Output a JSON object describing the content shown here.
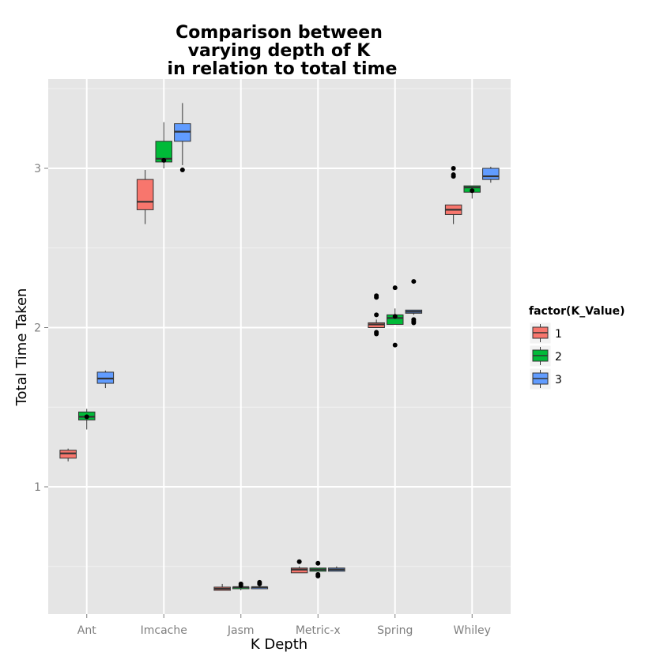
{
  "chart_data": {
    "type": "boxplot",
    "title_lines": [
      "Comparison between",
      "varying depth of K",
      "in relation to total time"
    ],
    "xlabel": "K Depth",
    "ylabel": "Total Time Taken",
    "ylim": [
      0.2,
      3.56
    ],
    "y_ticks": [
      1,
      2,
      3
    ],
    "y_tick_labels": [
      "1",
      "2",
      "3"
    ],
    "y_minor_ticks": [
      0.5,
      1.5,
      2.5,
      3.5
    ],
    "grid": true,
    "legend": {
      "title": "factor(K_Value)",
      "position": "right",
      "entries": [
        {
          "label": "1",
          "color": "#F8766D"
        },
        {
          "label": "2",
          "color": "#00BA38"
        },
        {
          "label": "3",
          "color": "#619CFF"
        }
      ]
    },
    "categories": [
      "Ant",
      "Imcache",
      "Jasm",
      "Metric-x",
      "Spring",
      "Whiley"
    ],
    "series": [
      {
        "name": "1",
        "color": "#F8766D",
        "boxes": [
          {
            "min": 1.16,
            "q1": 1.18,
            "median": 1.21,
            "q3": 1.23,
            "max": 1.24,
            "outliers": []
          },
          {
            "min": 2.65,
            "q1": 2.74,
            "median": 2.79,
            "q3": 2.93,
            "max": 2.99,
            "outliers": []
          },
          {
            "min": 0.35,
            "q1": 0.35,
            "median": 0.36,
            "q3": 0.37,
            "max": 0.39,
            "outliers": []
          },
          {
            "min": 0.46,
            "q1": 0.46,
            "median": 0.48,
            "q3": 0.49,
            "max": 0.5,
            "outliers": [
              0.53
            ]
          },
          {
            "min": 2.0,
            "q1": 2.0,
            "median": 2.02,
            "q3": 2.03,
            "max": 2.05,
            "outliers": [
              2.2,
              2.19,
              2.08,
              1.97,
              1.96
            ]
          },
          {
            "min": 2.65,
            "q1": 2.71,
            "median": 2.74,
            "q3": 2.77,
            "max": 2.77,
            "outliers": [
              3.0,
              2.96,
              2.95
            ]
          }
        ]
      },
      {
        "name": "2",
        "color": "#00BA38",
        "boxes": [
          {
            "min": 1.36,
            "q1": 1.42,
            "median": 1.44,
            "q3": 1.47,
            "max": 1.49,
            "outliers": [
              1.44
            ]
          },
          {
            "min": 3.0,
            "q1": 3.04,
            "median": 3.06,
            "q3": 3.17,
            "max": 3.29,
            "outliers": [
              3.05
            ]
          },
          {
            "min": 0.35,
            "q1": 0.36,
            "median": 0.37,
            "q3": 0.37,
            "max": 0.37,
            "outliers": [
              0.38,
              0.39
            ]
          },
          {
            "min": 0.47,
            "q1": 0.47,
            "median": 0.48,
            "q3": 0.49,
            "max": 0.49,
            "outliers": [
              0.52,
              0.44,
              0.45
            ]
          },
          {
            "min": 2.02,
            "q1": 2.02,
            "median": 2.06,
            "q3": 2.08,
            "max": 2.12,
            "outliers": [
              2.25,
              1.89,
              2.07
            ]
          },
          {
            "min": 2.81,
            "q1": 2.85,
            "median": 2.88,
            "q3": 2.89,
            "max": 2.89,
            "outliers": [
              2.86
            ]
          }
        ]
      },
      {
        "name": "3",
        "color": "#619CFF",
        "boxes": [
          {
            "min": 1.62,
            "q1": 1.65,
            "median": 1.68,
            "q3": 1.72,
            "max": 1.73,
            "outliers": []
          },
          {
            "min": 3.02,
            "q1": 3.17,
            "median": 3.23,
            "q3": 3.28,
            "max": 3.41,
            "outliers": [
              2.99
            ]
          },
          {
            "min": 0.36,
            "q1": 0.36,
            "median": 0.37,
            "q3": 0.37,
            "max": 0.38,
            "outliers": [
              0.39,
              0.4
            ]
          },
          {
            "min": 0.47,
            "q1": 0.47,
            "median": 0.48,
            "q3": 0.49,
            "max": 0.5,
            "outliers": []
          },
          {
            "min": 2.08,
            "q1": 2.09,
            "median": 2.1,
            "q3": 2.11,
            "max": 2.11,
            "outliers": [
              2.29,
              2.05,
              2.03,
              2.04
            ]
          },
          {
            "min": 2.91,
            "q1": 2.93,
            "median": 2.95,
            "q3": 3.0,
            "max": 3.01,
            "outliers": []
          }
        ]
      }
    ]
  }
}
